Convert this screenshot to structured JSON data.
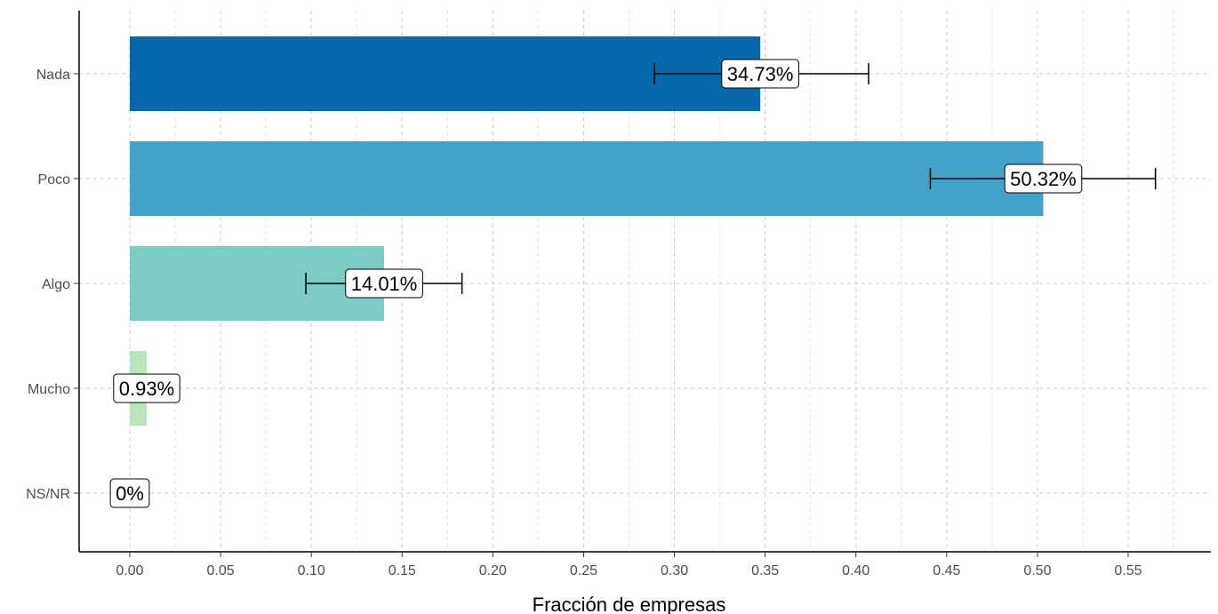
{
  "chart_data": {
    "type": "bar",
    "orientation": "horizontal",
    "title": "",
    "xlabel": "Fracción de empresas",
    "ylabel": "",
    "categories": [
      "Nada",
      "Poco",
      "Algo",
      "Mucho",
      "NS/NR"
    ],
    "values": [
      0.3473,
      0.5032,
      0.1401,
      0.0093,
      0.0
    ],
    "labels": [
      "34.73%",
      "50.32%",
      "14.01%",
      "0.93%",
      "0%"
    ],
    "error_low": [
      0.289,
      0.441,
      0.097,
      null,
      null
    ],
    "error_high": [
      0.407,
      0.565,
      0.183,
      null,
      null
    ],
    "colors": [
      "#0868ac",
      "#43a2ca",
      "#7bccc4",
      "#bae4bc",
      "#f0f9e8"
    ],
    "xlim": [
      -0.014,
      0.5825
    ],
    "xticks": [
      0.0,
      0.05,
      0.1,
      0.15,
      0.2,
      0.25,
      0.3,
      0.35,
      0.4,
      0.45,
      0.5,
      0.55
    ],
    "xtick_labels": [
      "0.00",
      "0.05",
      "0.10",
      "0.15",
      "0.20",
      "0.25",
      "0.30",
      "0.35",
      "0.40",
      "0.45",
      "0.50",
      "0.55"
    ],
    "grid": true,
    "legend": "none"
  }
}
